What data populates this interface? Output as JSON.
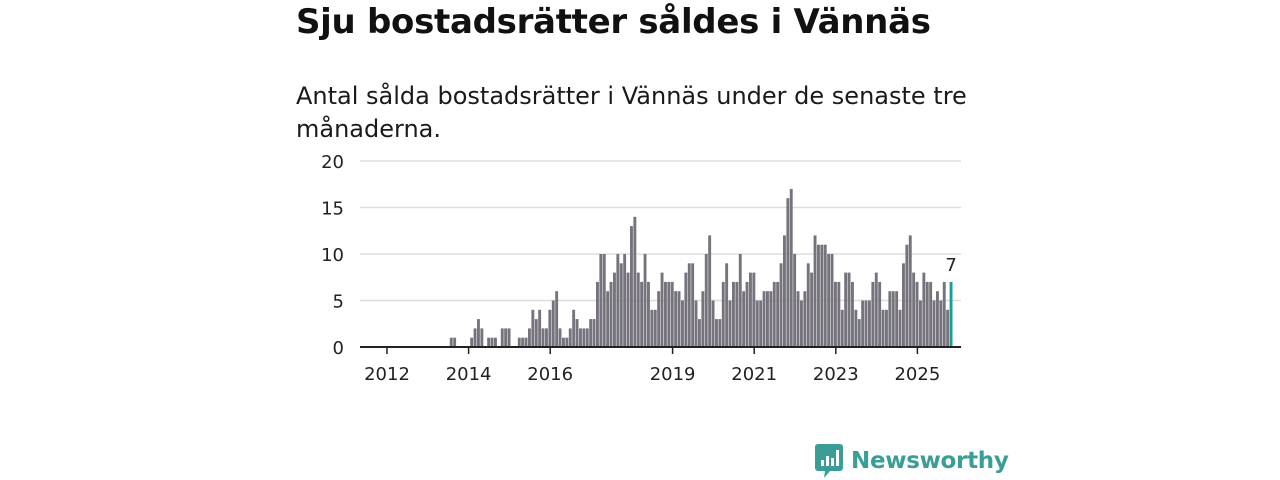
{
  "title": "Sju bostadsrätter såldes i Vännäs",
  "subtitle": "Antal sålda bostadsrätter i Vännäs under de senaste tre månaderna.",
  "brand": "Newsworthy",
  "colors": {
    "bar": "#76737d",
    "highlight": "#1b9e97",
    "grid": "#dddddd",
    "axis": "#222222",
    "brand": "#3a9e96"
  },
  "chart_data": {
    "type": "bar",
    "title": "Antal sålda bostadsrätter i Vännäs",
    "xlabel": "",
    "ylabel": "",
    "ylim": [
      0,
      20
    ],
    "yticks": [
      0,
      5,
      10,
      15,
      20
    ],
    "x_start": "2012-01",
    "x_end": "2025-10",
    "xticks": [
      {
        "label": "2012",
        "month_index": 0
      },
      {
        "label": "2014",
        "month_index": 24
      },
      {
        "label": "2016",
        "month_index": 48
      },
      {
        "label": "2019",
        "month_index": 84
      },
      {
        "label": "2021",
        "month_index": 108
      },
      {
        "label": "2023",
        "month_index": 132
      },
      {
        "label": "2025",
        "month_index": 156
      }
    ],
    "values": [
      0,
      0,
      0,
      0,
      0,
      0,
      0,
      0,
      0,
      0,
      0,
      0,
      0,
      0,
      0,
      0,
      0,
      0,
      0,
      0,
      0,
      0,
      1,
      1,
      0,
      0,
      0,
      0,
      1,
      2,
      3,
      2,
      0,
      1,
      1,
      1,
      0,
      2,
      2,
      2,
      0,
      0,
      1,
      1,
      1,
      2,
      4,
      3,
      4,
      2,
      2,
      4,
      5,
      6,
      2,
      1,
      1,
      2,
      4,
      3,
      2,
      2,
      2,
      3,
      3,
      7,
      10,
      10,
      6,
      7,
      8,
      10,
      9,
      10,
      8,
      13,
      14,
      8,
      7,
      10,
      7,
      4,
      4,
      6,
      8,
      7,
      7,
      7,
      6,
      6,
      5,
      8,
      9,
      9,
      5,
      3,
      6,
      10,
      12,
      5,
      3,
      3,
      7,
      9,
      5,
      7,
      7,
      10,
      6,
      7,
      8,
      8,
      5,
      5,
      6,
      6,
      6,
      7,
      7,
      9,
      12,
      16,
      17,
      10,
      6,
      5,
      6,
      9,
      8,
      12,
      11,
      11,
      11,
      10,
      10,
      7,
      7,
      4,
      8,
      8,
      7,
      4,
      3,
      5,
      5,
      5,
      7,
      8,
      7,
      4,
      4,
      6,
      6,
      6,
      4,
      9,
      11,
      12,
      8,
      7,
      5,
      8,
      7,
      7,
      5,
      6,
      5,
      7,
      4,
      7
    ],
    "highlight_last": true,
    "last_label": "7"
  }
}
